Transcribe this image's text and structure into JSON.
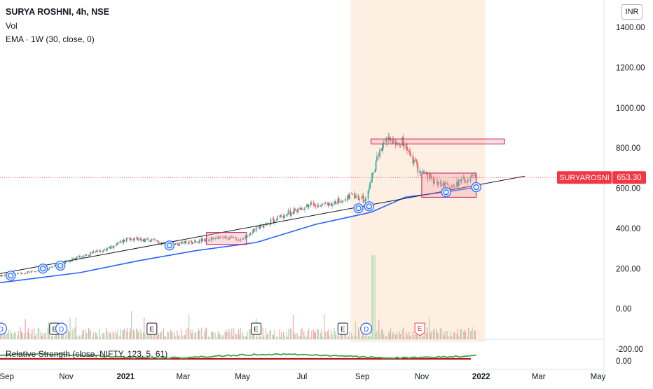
{
  "header": {
    "title": "SURYA ROSHNI, 4h, NSE",
    "volume_label": "Vol",
    "ema_label": "EMA · 1W (30, close, 0)"
  },
  "currency_button": "INR",
  "last_price_tag": {
    "symbol": "SURYAROSNI",
    "price": "653.30",
    "color": "#f23645"
  },
  "rs_label": "Relative Strength (close, NIFTY, 123, 5, 61)",
  "colors": {
    "candle_up": "#26a69a",
    "candle_down": "#ef5350",
    "ema_line": "#2962ff",
    "trend_line": "#131722",
    "box_border": "#c2185b",
    "box_fill": "#f4a0a8",
    "rs_line": "#43a047",
    "rs_zero": "#b71c1c",
    "highlight_region": "#fdf0e3"
  },
  "chart_data": {
    "type": "candlestick",
    "title": "SURYA ROSHNI, 4h, NSE",
    "y_axis": {
      "ticks": [
        "1400.00",
        "1200.00",
        "1000.00",
        "800.00",
        "600.00",
        "400.00",
        "200.00",
        "0.00",
        "-200.00"
      ],
      "range": [
        -220,
        1450
      ],
      "unit": "INR"
    },
    "x_axis": {
      "ticks": [
        "Sep",
        "Nov",
        "2021",
        "Mar",
        "May",
        "Jul",
        "Sep",
        "Nov",
        "2022",
        "Mar",
        "May"
      ],
      "range": [
        "2020-08-25",
        "2022-05-15"
      ]
    },
    "price_series": [
      {
        "date": "2020-09-01",
        "close": 165
      },
      {
        "date": "2020-10-15",
        "close": 200
      },
      {
        "date": "2020-11-15",
        "close": 260
      },
      {
        "date": "2020-12-15",
        "close": 300
      },
      {
        "date": "2021-01-05",
        "close": 355
      },
      {
        "date": "2021-01-25",
        "close": 340
      },
      {
        "date": "2021-02-20",
        "close": 320
      },
      {
        "date": "2021-03-20",
        "close": 340
      },
      {
        "date": "2021-04-15",
        "close": 355
      },
      {
        "date": "2021-05-01",
        "close": 345
      },
      {
        "date": "2021-05-15",
        "close": 400
      },
      {
        "date": "2021-06-10",
        "close": 460
      },
      {
        "date": "2021-07-10",
        "close": 520
      },
      {
        "date": "2021-08-01",
        "close": 520
      },
      {
        "date": "2021-08-20",
        "close": 560
      },
      {
        "date": "2021-09-05",
        "close": 540
      },
      {
        "date": "2021-09-15",
        "close": 730
      },
      {
        "date": "2021-09-28",
        "close": 850
      },
      {
        "date": "2021-10-12",
        "close": 830
      },
      {
        "date": "2021-10-28",
        "close": 700
      },
      {
        "date": "2021-11-15",
        "close": 630
      },
      {
        "date": "2021-12-01",
        "close": 610
      },
      {
        "date": "2021-12-15",
        "close": 640
      },
      {
        "date": "2021-12-27",
        "close": 653.3
      }
    ],
    "ema_series": [
      {
        "date": "2020-08-25",
        "value": 130
      },
      {
        "date": "2020-11-15",
        "value": 180
      },
      {
        "date": "2021-01-15",
        "value": 240
      },
      {
        "date": "2021-03-15",
        "value": 290
      },
      {
        "date": "2021-05-15",
        "value": 330
      },
      {
        "date": "2021-07-15",
        "value": 420
      },
      {
        "date": "2021-09-10",
        "value": 480
      },
      {
        "date": "2021-10-15",
        "value": 555
      },
      {
        "date": "2021-12-01",
        "value": 585
      },
      {
        "date": "2021-12-27",
        "value": 605
      }
    ],
    "trend_line": {
      "start": {
        "date": "2020-08-25",
        "value": 175
      },
      "end": {
        "date": "2022-02-15",
        "value": 660
      }
    },
    "annotation_boxes": [
      {
        "from": "2021-03-25",
        "to": "2021-05-05",
        "low": 320,
        "high": 380
      },
      {
        "from": "2021-09-10",
        "to": "2022-01-25",
        "low": 820,
        "high": 845
      },
      {
        "from": "2021-11-01",
        "to": "2021-12-27",
        "low": 555,
        "high": 675
      }
    ],
    "touch_markers": [
      {
        "date": "2020-09-05",
        "value": 165
      },
      {
        "date": "2020-10-08",
        "value": 200
      },
      {
        "date": "2020-10-26",
        "value": 215
      },
      {
        "date": "2021-02-15",
        "value": 315
      },
      {
        "date": "2021-08-28",
        "value": 500
      },
      {
        "date": "2021-09-08",
        "value": 510
      },
      {
        "date": "2021-11-26",
        "value": 580
      },
      {
        "date": "2021-12-27",
        "value": 605
      }
    ],
    "event_markers": [
      {
        "date": "2020-08-26",
        "letter": "D",
        "kind": "dividend"
      },
      {
        "date": "2020-10-20",
        "letter": "E",
        "kind": "earnings"
      },
      {
        "date": "2020-10-27",
        "letter": "D",
        "kind": "dividend"
      },
      {
        "date": "2021-01-28",
        "letter": "E",
        "kind": "earnings"
      },
      {
        "date": "2021-05-15",
        "letter": "E",
        "kind": "earnings"
      },
      {
        "date": "2021-08-12",
        "letter": "E",
        "kind": "earnings"
      },
      {
        "date": "2021-09-05",
        "letter": "D",
        "kind": "dividend"
      },
      {
        "date": "2021-10-30",
        "letter": "E",
        "kind": "earnings_upcoming"
      }
    ],
    "rs_axis": {
      "ticks": [
        "0.00"
      ]
    }
  }
}
